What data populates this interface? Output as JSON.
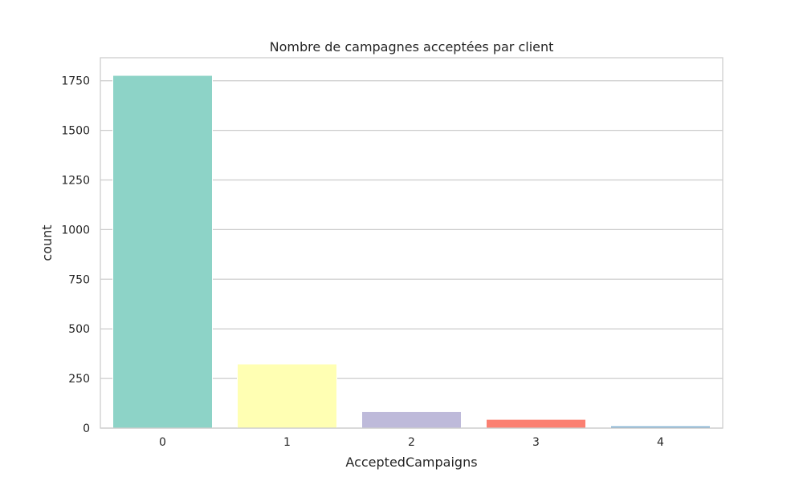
{
  "chart_data": {
    "type": "bar",
    "title": "Nombre de campagnes acceptées par client",
    "xlabel": "AcceptedCampaigns",
    "ylabel": "count",
    "categories": [
      "0",
      "1",
      "2",
      "3",
      "4"
    ],
    "values": [
      1777,
      323,
      83,
      44,
      11
    ],
    "colors": [
      "#8dd3c7",
      "#ffffb3",
      "#bebada",
      "#fb8072",
      "#80b1d3"
    ],
    "ylim": [
      0,
      1866
    ],
    "yticks": [
      0,
      250,
      500,
      750,
      1000,
      1250,
      1500,
      1750
    ],
    "ytick_labels": [
      "0",
      "250",
      "500",
      "750",
      "1000",
      "1250",
      "1500",
      "1750"
    ],
    "grid": true,
    "grid_axis": "y",
    "legend": "none"
  }
}
